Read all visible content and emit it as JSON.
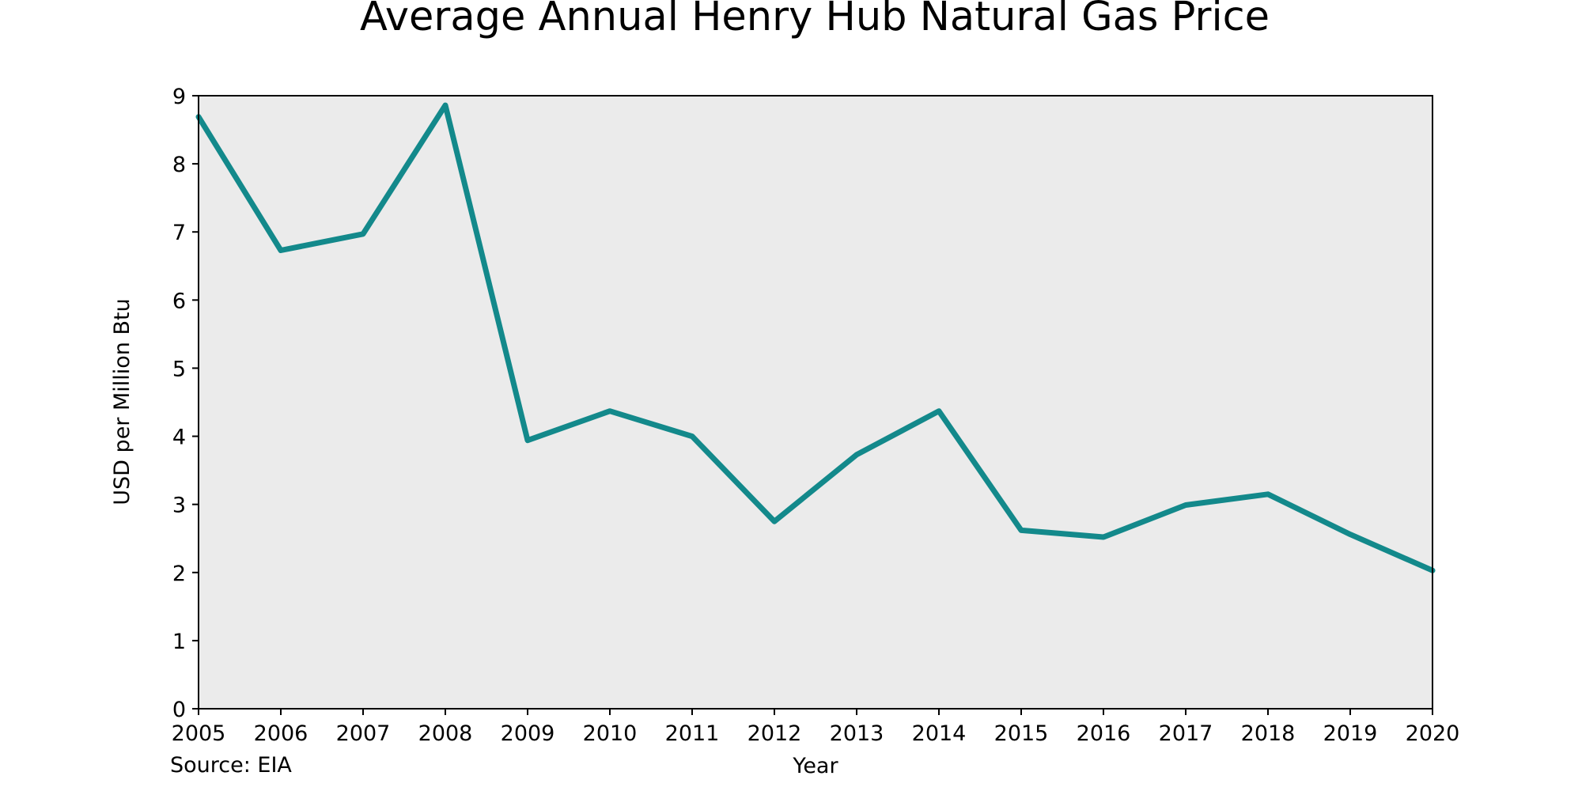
{
  "chart_data": {
    "type": "line",
    "title": "Average Annual Henry Hub Natural Gas Price",
    "xlabel": "Year",
    "ylabel": "USD per Million Btu",
    "source": "Source: EIA",
    "xlim": [
      2005,
      2020
    ],
    "ylim": [
      0,
      9
    ],
    "x_ticks": [
      "2005",
      "2006",
      "2007",
      "2008",
      "2009",
      "2010",
      "2011",
      "2012",
      "2013",
      "2014",
      "2015",
      "2016",
      "2017",
      "2018",
      "2019",
      "2020"
    ],
    "y_ticks": [
      "0",
      "1",
      "2",
      "3",
      "4",
      "5",
      "6",
      "7",
      "8",
      "9"
    ],
    "grid": false,
    "legend": "none",
    "series": [
      {
        "x": [
          2005,
          2006,
          2007,
          2008,
          2009,
          2010,
          2011,
          2012,
          2013,
          2014,
          2015,
          2016,
          2017,
          2018,
          2019,
          2020
        ],
        "values": [
          8.69,
          6.73,
          6.97,
          8.86,
          3.94,
          4.37,
          4.0,
          2.75,
          3.73,
          4.37,
          2.62,
          2.52,
          2.99,
          3.15,
          2.56,
          2.03
        ],
        "color": "#13898b"
      }
    ],
    "plot_background": "#ebebeb"
  }
}
